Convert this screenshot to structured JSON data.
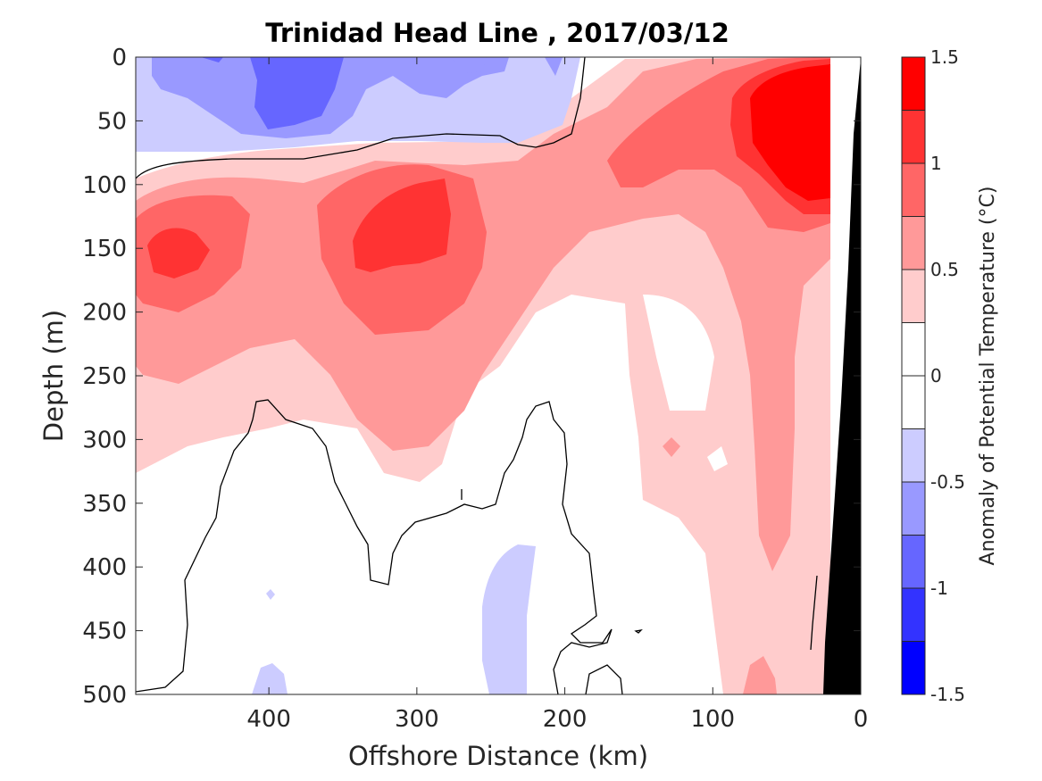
{
  "chart_data": {
    "type": "heatmap",
    "subtype": "filled-contour",
    "title": "Trinidad Head Line , 2017/03/12",
    "xlabel": "Offshore Distance (km)",
    "ylabel": "Depth (m)",
    "xlim": [
      490,
      0
    ],
    "ylim": [
      0,
      500
    ],
    "x_reversed": true,
    "y_reversed": true,
    "x_ticks": [
      400,
      300,
      200,
      100,
      0
    ],
    "y_ticks": [
      0,
      50,
      100,
      150,
      200,
      250,
      300,
      350,
      400,
      450,
      500
    ],
    "colorbar": {
      "label": "Anomaly of Potential Temperature (°C)",
      "limits": [
        -1.5,
        1.5
      ],
      "ticks": [
        "1.5",
        "1",
        "0.5",
        "0",
        "-0.5",
        "-1",
        "-1.5"
      ],
      "tick_values": [
        1.5,
        1,
        0.5,
        0,
        -0.5,
        -1,
        -1.5
      ],
      "levels": [
        {
          "range": [
            1.25,
            1.5
          ],
          "color": "#ff0000"
        },
        {
          "range": [
            1.0,
            1.25
          ],
          "color": "#ff3333"
        },
        {
          "range": [
            0.75,
            1.0
          ],
          "color": "#ff6666"
        },
        {
          "range": [
            0.5,
            0.75
          ],
          "color": "#ff9999"
        },
        {
          "range": [
            0.25,
            0.5
          ],
          "color": "#ffcccc"
        },
        {
          "range": [
            0.0,
            0.25
          ],
          "color": "#ffffff"
        },
        {
          "range": [
            -0.25,
            0.0
          ],
          "color": "#ffffff"
        },
        {
          "range": [
            -0.5,
            -0.25
          ],
          "color": "#ccccff"
        },
        {
          "range": [
            -0.75,
            -0.5
          ],
          "color": "#9999ff"
        },
        {
          "range": [
            -1.0,
            -0.75
          ],
          "color": "#6666ff"
        },
        {
          "range": [
            -1.25,
            -1.0
          ],
          "color": "#3333ff"
        },
        {
          "range": [
            -1.5,
            -1.25
          ],
          "color": "#0000ff"
        }
      ]
    },
    "features": [
      {
        "name": "cold-surface-layer",
        "anomaly": "-0.75 to -1.0 core",
        "x_range": [
          490,
          195
        ],
        "depth_range": [
          0,
          75
        ]
      },
      {
        "name": "warm-core-offshore",
        "anomaly": "1.0 to 1.25",
        "x_range": [
          490,
          430
        ],
        "depth_range": [
          130,
          175
        ]
      },
      {
        "name": "warm-core-mid",
        "anomaly": "1.0 to 1.25",
        "x_range": [
          375,
          290
        ],
        "depth_range": [
          95,
          180
        ]
      },
      {
        "name": "warm-core-nearshore",
        "anomaly": "1.25 to 1.5",
        "x_range": [
          95,
          25
        ],
        "depth_range": [
          10,
          110
        ]
      },
      {
        "name": "deep-cold-patch",
        "anomaly": "-0.25 to -0.5",
        "x_range": [
          260,
          225
        ],
        "depth_range": [
          380,
          500
        ]
      },
      {
        "name": "seafloor-bathymetry",
        "color": "#000000",
        "x_range": [
          30,
          0
        ],
        "depth_range": [
          0,
          500
        ]
      }
    ]
  }
}
